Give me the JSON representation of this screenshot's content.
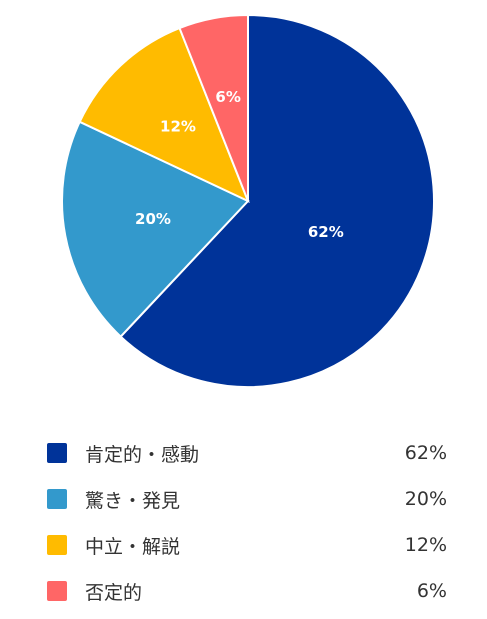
{
  "chart_data": {
    "type": "pie",
    "categories": [
      "肯定的・感動",
      "驚き・発見",
      "中立・解説",
      "否定的"
    ],
    "values": [
      62,
      20,
      12,
      6
    ],
    "value_labels": [
      "62%",
      "20%",
      "12%",
      "6%"
    ],
    "colors": [
      "#003399",
      "#3399cc",
      "#ffbb00",
      "#ff6666"
    ],
    "title": "",
    "legend_position": "bottom"
  }
}
